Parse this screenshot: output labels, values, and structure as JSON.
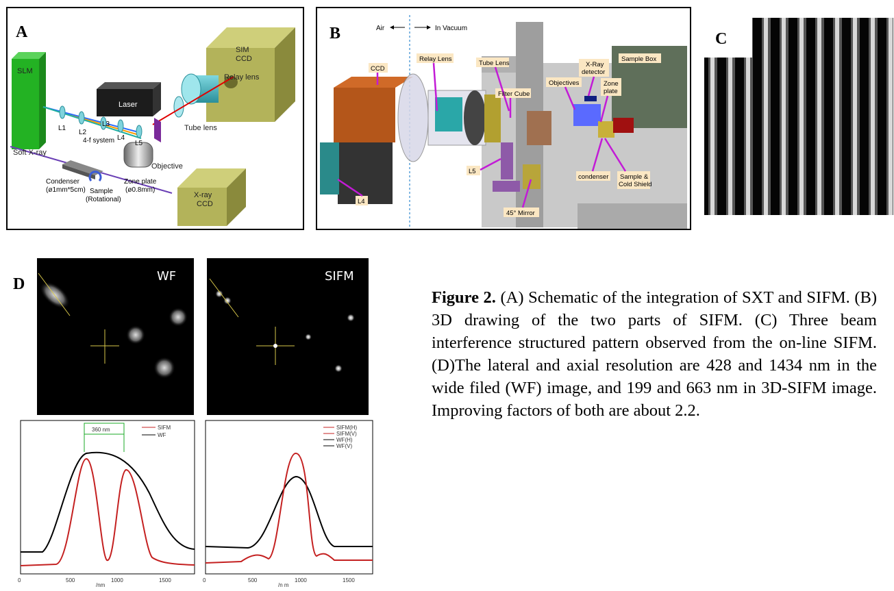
{
  "panel_a": {
    "label": "A",
    "texts": {
      "slm": "SLM",
      "laser": "Laser",
      "sim_ccd_1": "SIM",
      "sim_ccd_2": "CCD",
      "relay_lens": "Relay lens",
      "tube_lens": "Tube lens",
      "objective": "Objective",
      "l1": "L1",
      "l2": "L2",
      "l3": "L3",
      "l4": "L4",
      "l5": "L5",
      "four_f": "4-f system",
      "soft_xray": "Soft X-ray",
      "condenser_1": "Condenser",
      "condenser_2": "(ø1mm*5cm)",
      "sample_1": "Sample",
      "sample_2": "(Rotational)",
      "zone_1": "Zone plate",
      "zone_2": "(ø0.8mm)",
      "xray_ccd_1": "X-ray",
      "xray_ccd_2": "CCD"
    }
  },
  "panel_b": {
    "label": "B",
    "air": "Air",
    "vacuum": "In Vacuum",
    "tags": {
      "ccd": "CCD",
      "relay": "Relay Lens",
      "tube": "Tube Lens",
      "filter": "Filter Cube",
      "objectives": "Objectives",
      "xray1": "X-Ray",
      "xray2": "detector",
      "zone1": "Zone",
      "zone2": "plate",
      "samplebox": "Sample Box",
      "l5": "L5",
      "l4": "L4",
      "mirror": "45° Mirror",
      "condenser": "condenser",
      "sample1": "Sample &",
      "sample2": "Cold Shield"
    }
  },
  "panel_c": {
    "label": "C"
  },
  "panel_d": {
    "label": "D",
    "wf": "WF",
    "sifm": "SIFM",
    "marker": "360 nm",
    "left_legend": [
      "SIFM",
      "WF"
    ],
    "right_legend": [
      "SIFM(H)",
      "SIFM(V)",
      "WF(H)",
      "WF(V)"
    ],
    "xticks": [
      "0",
      "500",
      "1000",
      "1500"
    ],
    "xlabel_left": "/nm",
    "xlabel_right": "/n m"
  },
  "caption": {
    "bold": "Figure 2.",
    "text": " (A) Schematic of the integration of SXT and SIFM. (B) 3D drawing of the two parts of SIFM. (C) Three beam interference structured pattern observed from the on-line SIFM. (D)The lateral and axial resolution are 428 and 1434 nm in the wide filed (WF) image, and 199 and 663 nm in 3D-SIFM image. Improving factors of both are about 2.2."
  }
}
